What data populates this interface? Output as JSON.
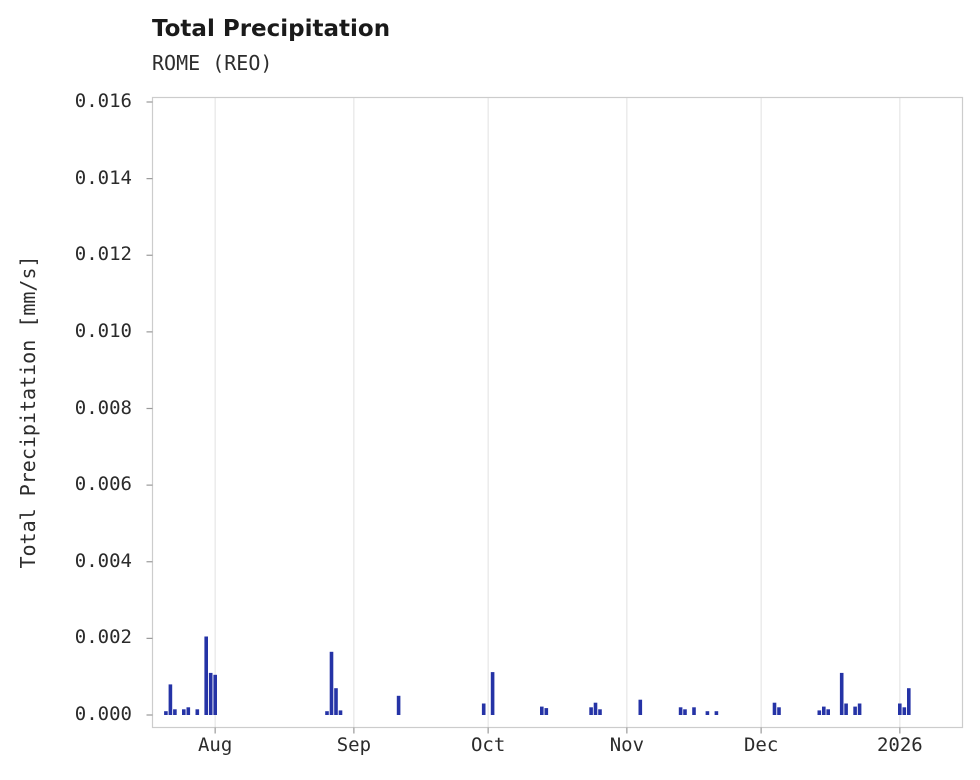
{
  "chart": {
    "title": "Total Precipitation",
    "subtitle": "ROME (REO)",
    "ylabel": "Total Precipitation [mm/s]"
  },
  "chart_data": {
    "type": "bar",
    "title": "Total Precipitation",
    "subtitle": "ROME (REO)",
    "xlabel": "",
    "ylabel": "Total Precipitation [mm/s]",
    "ylim": [
      0,
      0.016
    ],
    "x_range": [
      "2025-07-18",
      "2026-01-15"
    ],
    "grid": "vertical-only",
    "legend": "none",
    "bar_color": "#2533a6",
    "grid_color": "#e1e1e1",
    "frame_color": "#cccccc",
    "tick_color": "#9a9a9a",
    "y_ticks": [
      {
        "value": 0.0,
        "label": "0.000"
      },
      {
        "value": 0.002,
        "label": "0.002"
      },
      {
        "value": 0.004,
        "label": "0.004"
      },
      {
        "value": 0.006,
        "label": "0.006"
      },
      {
        "value": 0.008,
        "label": "0.008"
      },
      {
        "value": 0.01,
        "label": "0.010"
      },
      {
        "value": 0.012,
        "label": "0.012"
      },
      {
        "value": 0.014,
        "label": "0.014"
      },
      {
        "value": 0.016,
        "label": "0.016"
      }
    ],
    "x_ticks": [
      {
        "date": "2025-08-01",
        "label": "Aug"
      },
      {
        "date": "2025-09-01",
        "label": "Sep"
      },
      {
        "date": "2025-10-01",
        "label": "Oct"
      },
      {
        "date": "2025-11-01",
        "label": "Nov"
      },
      {
        "date": "2025-12-01",
        "label": "Dec"
      },
      {
        "date": "2026-01-01",
        "label": "2026"
      }
    ],
    "points": [
      [
        "2025-07-21",
        0.0001
      ],
      [
        "2025-07-22",
        0.0008
      ],
      [
        "2025-07-23",
        0.00015
      ],
      [
        "2025-07-25",
        0.00015
      ],
      [
        "2025-07-26",
        0.0002
      ],
      [
        "2025-07-28",
        0.00015
      ],
      [
        "2025-07-30",
        0.00205
      ],
      [
        "2025-07-31",
        0.0011
      ],
      [
        "2025-08-01",
        0.00105
      ],
      [
        "2025-08-26",
        0.0001
      ],
      [
        "2025-08-27",
        0.00165
      ],
      [
        "2025-08-28",
        0.0007
      ],
      [
        "2025-08-29",
        0.00012
      ],
      [
        "2025-09-11",
        0.0005
      ],
      [
        "2025-09-30",
        0.0003
      ],
      [
        "2025-10-02",
        0.00112
      ],
      [
        "2025-10-13",
        0.00022
      ],
      [
        "2025-10-14",
        0.00018
      ],
      [
        "2025-10-24",
        0.0002
      ],
      [
        "2025-10-25",
        0.00032
      ],
      [
        "2025-10-26",
        0.00015
      ],
      [
        "2025-11-04",
        0.0004
      ],
      [
        "2025-11-13",
        0.0002
      ],
      [
        "2025-11-14",
        0.00015
      ],
      [
        "2025-11-16",
        0.0002
      ],
      [
        "2025-11-19",
        0.0001
      ],
      [
        "2025-11-21",
        0.0001
      ],
      [
        "2025-12-04",
        0.00032
      ],
      [
        "2025-12-05",
        0.0002
      ],
      [
        "2025-12-14",
        0.00012
      ],
      [
        "2025-12-15",
        0.00022
      ],
      [
        "2025-12-16",
        0.00015
      ],
      [
        "2025-12-19",
        0.0011
      ],
      [
        "2025-12-20",
        0.0003
      ],
      [
        "2025-12-22",
        0.00022
      ],
      [
        "2025-12-23",
        0.0003
      ],
      [
        "2026-01-01",
        0.0003
      ],
      [
        "2026-01-02",
        0.0002
      ],
      [
        "2026-01-03",
        0.0007
      ]
    ]
  }
}
